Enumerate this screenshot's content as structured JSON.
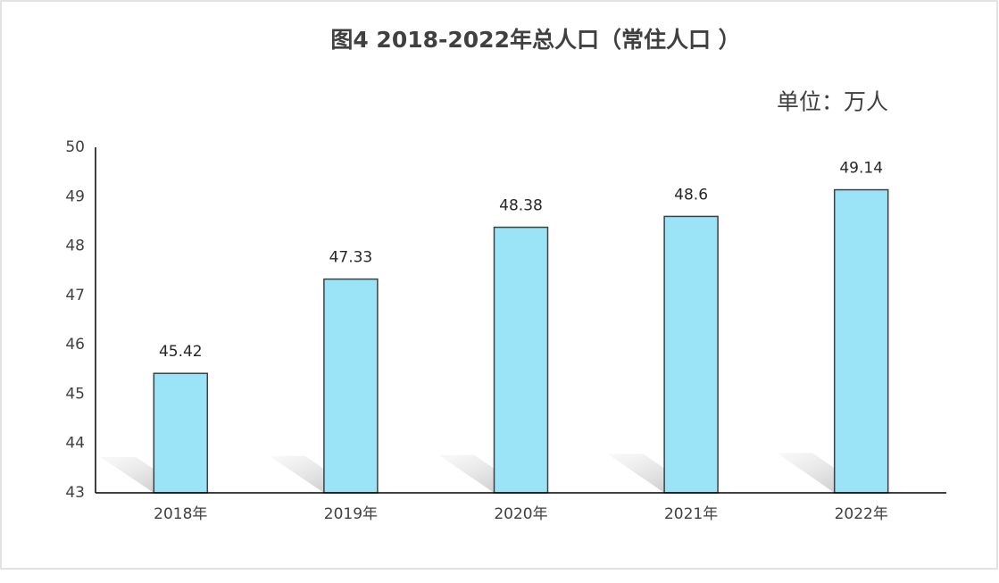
{
  "chart_data": {
    "type": "bar",
    "title": "图4  2018-2022年总人口（常住人口 ）",
    "subtitle": "单位：万人",
    "categories": [
      "2018年",
      "2019年",
      "2020年",
      "2021年",
      "2022年"
    ],
    "values": [
      45.42,
      47.33,
      48.38,
      48.6,
      49.14
    ],
    "color": "#9be3f7",
    "ylim": [
      43,
      50
    ],
    "yticks": [
      43,
      44,
      45,
      46,
      47,
      48,
      49,
      50
    ],
    "grid": false
  }
}
